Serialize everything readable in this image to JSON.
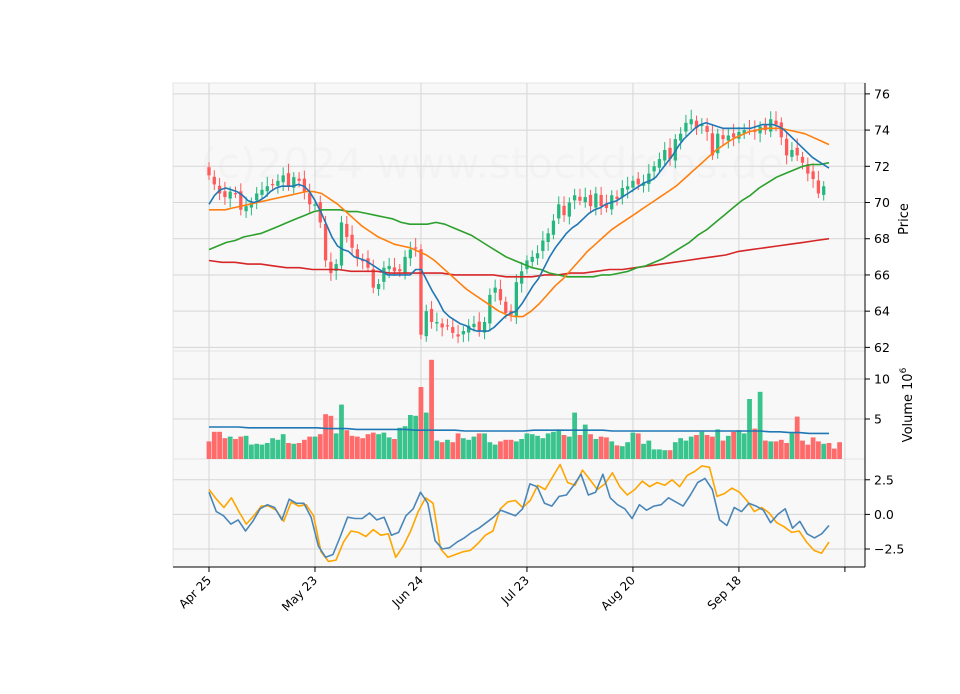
{
  "chart_data": {
    "type": "candlestick",
    "watermark": "(c)2024 www.stockdrops.de",
    "colors": {
      "up": "#26b77f",
      "down": "#ff5a5a",
      "volume_up": "#39c38d",
      "volume_down": "#ff6b6b",
      "ma_fast": "#1f77b4",
      "ma_mid": "#ff7f0e",
      "ma_slow": "#2ca02c",
      "ma_long": "#d62728",
      "volume_ma": "#1f77b4",
      "osc_a": "#4a86b8",
      "osc_b": "#ffa500",
      "panel_bg": "#f8f8f8",
      "grid": "#d6d6d6"
    },
    "xaxis": {
      "tick_labels": [
        "Apr 25",
        "May 23",
        "Jun 24",
        "Jul 23",
        "Aug 20",
        "Sep 18",
        ""
      ],
      "tick_indices": [
        0,
        20,
        40,
        60,
        80,
        100,
        120
      ]
    },
    "price_panel": {
      "ylabel": "Price",
      "ylim": [
        61.8,
        76.6
      ],
      "ticks": [
        62,
        64,
        66,
        68,
        70,
        72,
        74,
        76
      ],
      "close": [
        71.5,
        71.0,
        70.5,
        70.3,
        70.6,
        70.5,
        69.6,
        69.8,
        70.0,
        70.5,
        70.7,
        70.9,
        71.0,
        71.2,
        71.5,
        70.9,
        71.4,
        71.2,
        70.6,
        69.9,
        69.9,
        68.9,
        66.8,
        66.1,
        66.6,
        68.9,
        68.1,
        67.5,
        66.9,
        66.8,
        66.4,
        65.3,
        65.5,
        66.4,
        66.5,
        66.2,
        66.2,
        67.0,
        67.4,
        67.5,
        62.7,
        64.0,
        63.4,
        63.4,
        63.1,
        63.2,
        62.8,
        62.6,
        62.9,
        63.2,
        63.3,
        62.9,
        63.4,
        64.9,
        65.3,
        64.6,
        63.9,
        63.8,
        65.6,
        66.2,
        66.8,
        67.0,
        67.2,
        67.9,
        68.3,
        69.0,
        69.9,
        69.3,
        70.0,
        70.4,
        70.1,
        70.3,
        69.8,
        70.5,
        69.8,
        69.7,
        70.4,
        70.2,
        70.8,
        70.9,
        71.2,
        71.0,
        71.1,
        71.6,
        72.0,
        72.4,
        72.9,
        72.4,
        73.5,
        73.8,
        74.4,
        74.6,
        74.1,
        74.3,
        73.9,
        72.6,
        73.8,
        73.5,
        73.7,
        73.6,
        73.9,
        74.0,
        74.1,
        73.9,
        74.2,
        74.0,
        74.6,
        74.3,
        73.6,
        72.6,
        72.9,
        72.6,
        72.2,
        71.6,
        71.3,
        70.5,
        70.9
      ],
      "ma_fast": [
        69.9,
        70.4,
        70.7,
        70.8,
        70.7,
        70.6,
        70.4,
        70.1,
        70.0,
        70.1,
        70.3,
        70.6,
        70.8,
        70.9,
        70.9,
        70.9,
        71.0,
        70.9,
        70.6,
        70.1,
        69.5,
        68.8,
        68.1,
        67.6,
        67.4,
        67.3,
        67.0,
        66.9,
        66.8,
        66.6,
        66.4,
        66.2,
        66.0,
        66.0,
        66.0,
        66.0,
        66.0,
        66.3,
        66.3,
        65.7,
        65.1,
        64.6,
        64.0,
        63.7,
        63.5,
        63.3,
        63.2,
        63.0,
        62.9,
        62.9,
        62.9,
        63.1,
        63.4,
        63.7,
        63.9,
        64.0,
        64.4,
        64.9,
        65.4,
        65.8,
        66.4,
        67.0,
        67.5,
        67.9,
        68.3,
        68.6,
        68.8,
        69.1,
        69.4,
        69.6,
        69.7,
        69.9,
        70.0,
        70.1,
        70.3,
        70.5,
        70.7,
        70.9,
        71.1,
        71.2,
        71.4,
        71.8,
        72.2,
        72.6,
        73.1,
        73.5,
        73.8,
        74.1,
        74.3,
        74.4,
        74.3,
        74.2,
        74.1,
        74.1,
        74.1,
        74.1,
        74.1,
        74.1,
        74.2,
        74.3,
        74.3,
        74.3,
        74.2,
        74.0,
        73.7,
        73.4,
        73.1,
        72.8,
        72.5,
        72.3,
        72.1,
        71.9
      ],
      "ma_mid": [
        69.6,
        69.6,
        69.6,
        69.7,
        69.8,
        69.9,
        70.0,
        70.1,
        70.2,
        70.3,
        70.4,
        70.5,
        70.6,
        70.6,
        70.5,
        70.2,
        69.9,
        69.5,
        69.1,
        68.7,
        68.4,
        68.1,
        67.9,
        67.7,
        67.6,
        67.5,
        67.3,
        67.1,
        66.8,
        66.4,
        66.0,
        65.6,
        65.2,
        64.9,
        64.6,
        64.3,
        64.0,
        63.8,
        63.7,
        63.7,
        64.0,
        64.4,
        64.9,
        65.4,
        65.8,
        66.3,
        66.8,
        67.3,
        67.7,
        68.1,
        68.5,
        68.8,
        69.1,
        69.4,
        69.7,
        70.0,
        70.3,
        70.6,
        70.9,
        71.3,
        71.7,
        72.1,
        72.5,
        72.9,
        73.2,
        73.5,
        73.7,
        73.9,
        74.0,
        74.1,
        74.1,
        74.1,
        74.0,
        73.9,
        73.8,
        73.6,
        73.4,
        73.2
      ],
      "ma_slow": [
        67.4,
        67.6,
        67.8,
        67.9,
        68.1,
        68.2,
        68.3,
        68.5,
        68.7,
        68.9,
        69.1,
        69.3,
        69.5,
        69.6,
        69.6,
        69.6,
        69.5,
        69.5,
        69.4,
        69.3,
        69.2,
        69.1,
        68.9,
        68.8,
        68.8,
        68.8,
        68.9,
        68.8,
        68.6,
        68.4,
        68.2,
        67.9,
        67.6,
        67.3,
        67.0,
        66.8,
        66.6,
        66.4,
        66.3,
        66.1,
        66.0,
        65.9,
        65.9,
        65.9,
        65.9,
        66.0,
        66.0,
        66.1,
        66.2,
        66.4,
        66.5,
        66.7,
        66.9,
        67.2,
        67.5,
        67.8,
        68.2,
        68.5,
        68.9,
        69.3,
        69.7,
        70.1,
        70.4,
        70.8,
        71.1,
        71.4,
        71.6,
        71.8,
        72.0,
        72.1,
        72.1,
        72.2
      ],
      "ma_long": [
        66.8,
        66.7,
        66.7,
        66.6,
        66.6,
        66.5,
        66.4,
        66.4,
        66.3,
        66.3,
        66.3,
        66.2,
        66.2,
        66.2,
        66.1,
        66.1,
        66.1,
        66.1,
        66.1,
        66.0,
        66.0,
        66.0,
        66.0,
        65.9,
        65.9,
        65.9,
        66.0,
        66.0,
        66.1,
        66.1,
        66.2,
        66.3,
        66.3,
        66.4,
        66.5,
        66.6,
        66.7,
        66.8,
        66.9,
        67.0,
        67.1,
        67.3,
        67.4,
        67.5,
        67.6,
        67.7,
        67.8,
        67.9,
        68.0
      ]
    },
    "volume_panel": {
      "ylabel": "Volume",
      "ylabel_exp": "6",
      "ylim": [
        0,
        13.5
      ],
      "ticks": [
        5,
        10
      ],
      "values": [
        2.2,
        3.4,
        3.4,
        2.6,
        2.8,
        2.5,
        2.8,
        2.9,
        1.8,
        1.9,
        1.8,
        2.0,
        2.6,
        2.4,
        3.1,
        2.0,
        1.9,
        2.0,
        2.4,
        2.8,
        2.8,
        3.1,
        5.6,
        5.4,
        3.2,
        6.8,
        3.6,
        2.9,
        2.8,
        2.6,
        3.1,
        3.3,
        3.1,
        3.3,
        2.7,
        2.5,
        3.9,
        4.1,
        5.5,
        5.4,
        9.0,
        5.8,
        12.4,
        2.3,
        2.1,
        2.4,
        2.1,
        3.2,
        2.6,
        2.4,
        2.8,
        3.2,
        3.2,
        2.1,
        1.8,
        2.2,
        2.4,
        2.4,
        2.2,
        2.5,
        3.2,
        3.1,
        2.9,
        2.6,
        3.2,
        3.4,
        3.7,
        3.0,
        2.8,
        5.8,
        3.0,
        4.3,
        3.1,
        2.5,
        2.8,
        2.7,
        2.2,
        1.7,
        1.6,
        2.1,
        3.3,
        3.2,
        1.9,
        2.3,
        1.2,
        1.2,
        1.1,
        1.1,
        2.1,
        2.6,
        2.3,
        2.8,
        3.0,
        3.4,
        3.0,
        2.8,
        3.7,
        2.3,
        2.9,
        3.4,
        3.6,
        3.2,
        7.5,
        3.8,
        8.4,
        2.3,
        2.2,
        2.2,
        2.4,
        2.0,
        3.2,
        5.3,
        2.3,
        1.8,
        2.7,
        2.2,
        1.9,
        2.0,
        1.3,
        2.1
      ],
      "ma": [
        4.0,
        4.0,
        4.0,
        4.0,
        3.9,
        3.9,
        3.9,
        3.9,
        3.9,
        3.9,
        3.9,
        3.9,
        3.8,
        3.8,
        3.8,
        3.7,
        3.7,
        3.7,
        3.7,
        3.7,
        3.7,
        3.6,
        3.6,
        3.6,
        3.6,
        3.6,
        3.5,
        3.5,
        3.5,
        3.5,
        3.5,
        3.5,
        3.5,
        3.6,
        3.6,
        3.6,
        3.6,
        3.6,
        3.6,
        3.6,
        3.6,
        3.5,
        3.5,
        3.5,
        3.5,
        3.5,
        3.5,
        3.5,
        3.5,
        3.5,
        3.5,
        3.5,
        3.5,
        3.5,
        3.5,
        3.5,
        3.5,
        3.4,
        3.4,
        3.3,
        3.3,
        3.2,
        3.2,
        3.2
      ]
    },
    "oscillator_panel": {
      "ylim": [
        -3.8,
        4.0
      ],
      "ticks": [
        -2.5,
        0.0,
        2.5
      ],
      "tick_labels": [
        "−2.5",
        "0.0",
        "2.5"
      ],
      "series_a": [
        1.6,
        0.2,
        -0.1,
        -0.7,
        -0.4,
        -1.2,
        -0.5,
        0.4,
        0.7,
        0.5,
        -0.4,
        1.1,
        0.8,
        0.8,
        -0.2,
        -2.3,
        -3.1,
        -2.9,
        -1.6,
        -0.2,
        -0.3,
        -0.3,
        0.1,
        -0.4,
        -0.2,
        -1.5,
        -1.3,
        -0.1,
        0.4,
        1.6,
        0.8,
        -1.9,
        -2.5,
        -2.4,
        -2.0,
        -1.7,
        -1.3,
        -1.0,
        -0.6,
        -0.2,
        0.3,
        0.1,
        -0.1,
        0.4,
        2.2,
        2.0,
        0.8,
        0.6,
        1.3,
        1.4,
        2.1,
        2.9,
        1.4,
        1.6,
        2.9,
        1.2,
        0.7,
        0.4,
        -0.3,
        0.7,
        0.3,
        0.6,
        0.7,
        1.2,
        0.9,
        0.6,
        1.4,
        2.3,
        2.6,
        1.8,
        -0.4,
        -0.8,
        0.5,
        0.2,
        0.8,
        0.6,
        0.3,
        -0.6,
        0.0,
        0.4,
        -1.0,
        -0.5,
        -1.4,
        -1.7,
        -1.4,
        -0.8
      ],
      "series_b": [
        1.8,
        1.1,
        0.5,
        1.2,
        0.2,
        -0.7,
        -0.1,
        0.6,
        0.6,
        0.3,
        -0.5,
        0.9,
        0.6,
        0.7,
        -0.1,
        -2.7,
        -3.4,
        -3.3,
        -2.0,
        -1.2,
        -1.3,
        -1.6,
        -1.1,
        -1.5,
        -1.4,
        -3.1,
        -2.3,
        -1.2,
        0.2,
        1.2,
        0.8,
        -2.5,
        -3.1,
        -2.9,
        -2.7,
        -2.6,
        -2.1,
        -1.5,
        -1.2,
        0.4,
        0.9,
        1.0,
        0.5,
        1.0,
        2.1,
        1.8,
        2.7,
        3.6,
        2.3,
        2.1,
        3.2,
        2.5,
        1.8,
        2.2,
        3.0,
        2.0,
        1.4,
        1.8,
        2.4,
        2.0,
        2.3,
        2.1,
        2.5,
        2.0,
        2.8,
        3.1,
        3.5,
        3.4,
        1.3,
        1.5,
        1.9,
        1.6,
        1.0,
        0.2,
        0.5,
        0.1,
        -0.6,
        -0.9,
        -1.3,
        -1.2,
        -2.0,
        -2.6,
        -2.8,
        -2.0
      ]
    },
    "n_bars": 118
  }
}
